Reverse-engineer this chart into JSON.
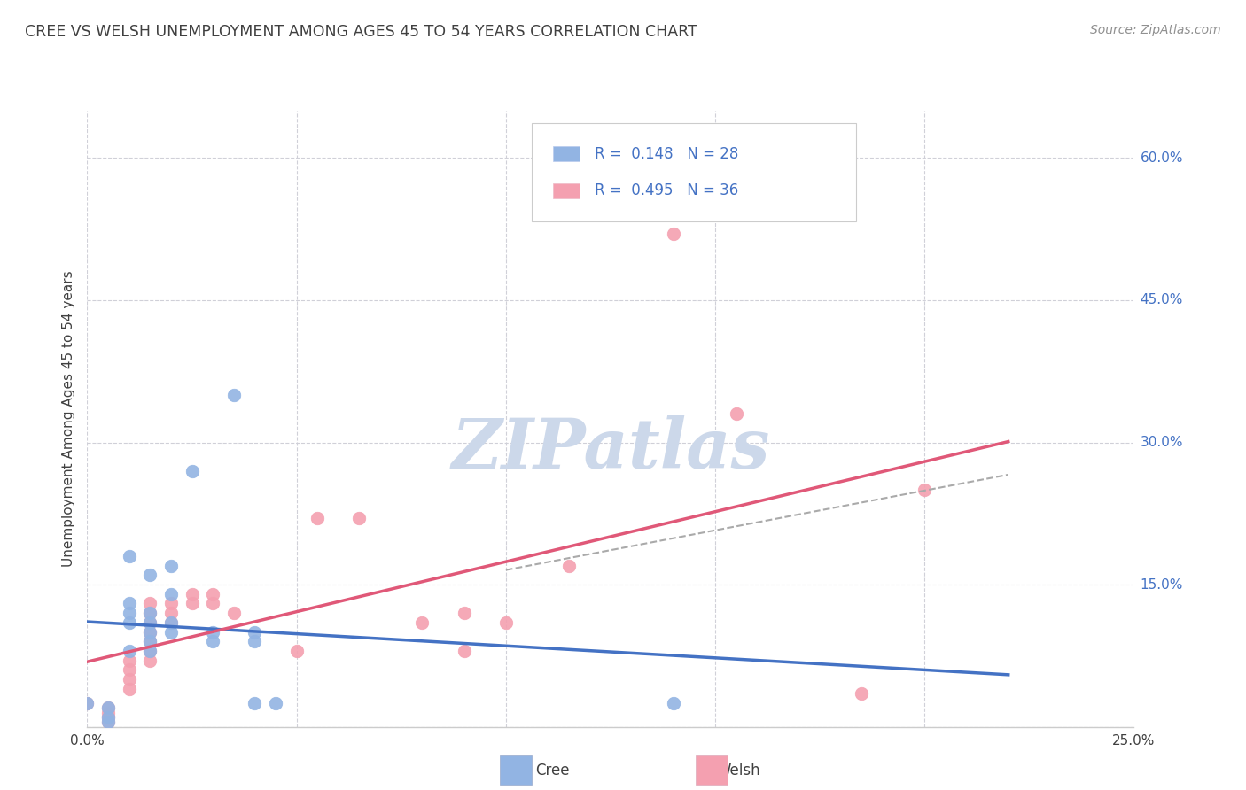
{
  "title": "CREE VS WELSH UNEMPLOYMENT AMONG AGES 45 TO 54 YEARS CORRELATION CHART",
  "source": "Source: ZipAtlas.com",
  "ylabel": "Unemployment Among Ages 45 to 54 years",
  "cree_R": 0.148,
  "cree_N": 28,
  "welsh_R": 0.495,
  "welsh_N": 36,
  "xlim": [
    0,
    0.25
  ],
  "ylim": [
    0,
    0.65
  ],
  "xticks": [
    0.0,
    0.05,
    0.1,
    0.15,
    0.2,
    0.25
  ],
  "yticks": [
    0.0,
    0.15,
    0.3,
    0.45,
    0.6
  ],
  "ytick_labels_right": [
    "",
    "15.0%",
    "30.0%",
    "45.0%",
    "60.0%"
  ],
  "cree_color": "#92b4e3",
  "welsh_color": "#f4a0b0",
  "cree_line_color": "#4472c4",
  "welsh_line_color": "#e05878",
  "cree_scatter": [
    [
      0.0,
      0.025
    ],
    [
      0.005,
      0.02
    ],
    [
      0.005,
      0.01
    ],
    [
      0.005,
      0.005
    ],
    [
      0.01,
      0.18
    ],
    [
      0.01,
      0.13
    ],
    [
      0.01,
      0.12
    ],
    [
      0.01,
      0.11
    ],
    [
      0.01,
      0.08
    ],
    [
      0.015,
      0.16
    ],
    [
      0.015,
      0.12
    ],
    [
      0.015,
      0.11
    ],
    [
      0.015,
      0.1
    ],
    [
      0.015,
      0.09
    ],
    [
      0.015,
      0.08
    ],
    [
      0.02,
      0.17
    ],
    [
      0.02,
      0.14
    ],
    [
      0.02,
      0.11
    ],
    [
      0.02,
      0.1
    ],
    [
      0.025,
      0.27
    ],
    [
      0.03,
      0.1
    ],
    [
      0.03,
      0.09
    ],
    [
      0.035,
      0.35
    ],
    [
      0.04,
      0.1
    ],
    [
      0.04,
      0.09
    ],
    [
      0.04,
      0.025
    ],
    [
      0.045,
      0.025
    ],
    [
      0.14,
      0.025
    ]
  ],
  "welsh_scatter": [
    [
      0.0,
      0.025
    ],
    [
      0.005,
      0.02
    ],
    [
      0.005,
      0.015
    ],
    [
      0.005,
      0.01
    ],
    [
      0.005,
      0.005
    ],
    [
      0.01,
      0.07
    ],
    [
      0.01,
      0.06
    ],
    [
      0.01,
      0.05
    ],
    [
      0.01,
      0.04
    ],
    [
      0.015,
      0.13
    ],
    [
      0.015,
      0.12
    ],
    [
      0.015,
      0.11
    ],
    [
      0.015,
      0.1
    ],
    [
      0.015,
      0.09
    ],
    [
      0.015,
      0.08
    ],
    [
      0.015,
      0.07
    ],
    [
      0.02,
      0.13
    ],
    [
      0.02,
      0.12
    ],
    [
      0.02,
      0.11
    ],
    [
      0.025,
      0.14
    ],
    [
      0.025,
      0.13
    ],
    [
      0.03,
      0.14
    ],
    [
      0.03,
      0.13
    ],
    [
      0.035,
      0.12
    ],
    [
      0.05,
      0.08
    ],
    [
      0.055,
      0.22
    ],
    [
      0.065,
      0.22
    ],
    [
      0.08,
      0.11
    ],
    [
      0.09,
      0.12
    ],
    [
      0.09,
      0.08
    ],
    [
      0.1,
      0.11
    ],
    [
      0.115,
      0.17
    ],
    [
      0.14,
      0.52
    ],
    [
      0.155,
      0.33
    ],
    [
      0.185,
      0.035
    ],
    [
      0.2,
      0.25
    ]
  ],
  "background_color": "#ffffff",
  "grid_color": "#d0d0d8",
  "watermark_color": "#ccd8ea",
  "legend_text_color": "#4472c4",
  "title_color": "#404040",
  "source_color": "#909090"
}
